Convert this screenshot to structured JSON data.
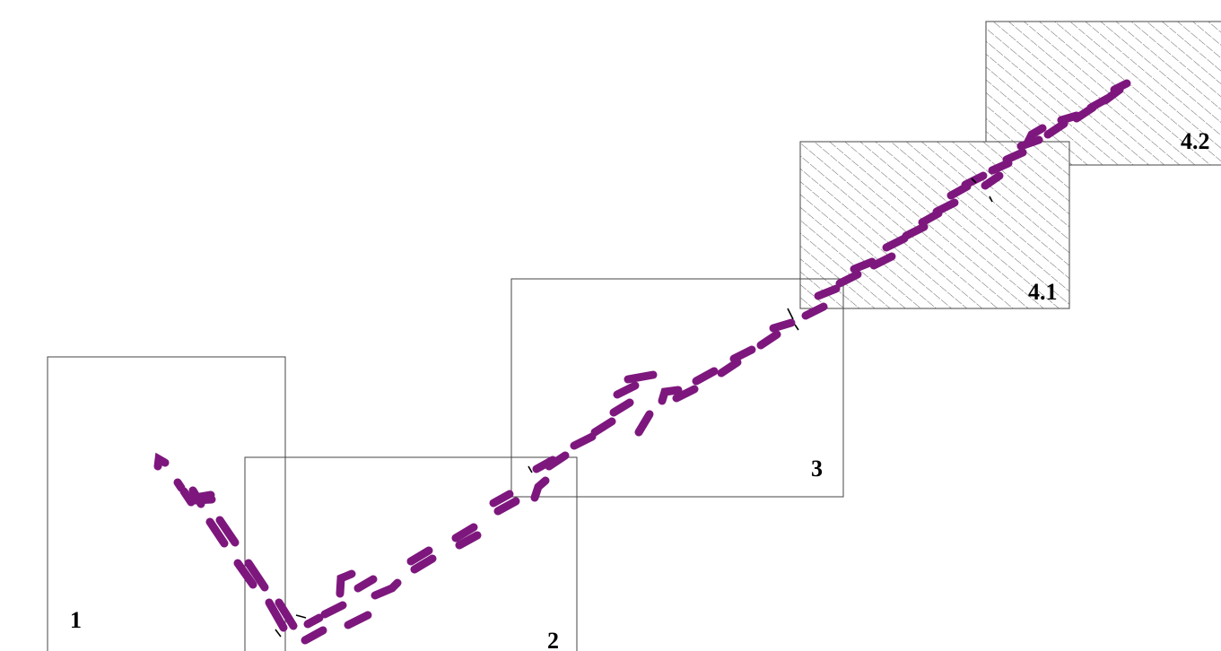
{
  "diagram": {
    "path_color": "#7d177d",
    "hatch_color": "#555555",
    "regions": [
      {
        "label": "1",
        "hatched": false
      },
      {
        "label": "2",
        "hatched": false
      },
      {
        "label": "3",
        "hatched": false
      },
      {
        "label": "4.1",
        "hatched": true
      },
      {
        "label": "4.2",
        "hatched": true
      }
    ]
  }
}
